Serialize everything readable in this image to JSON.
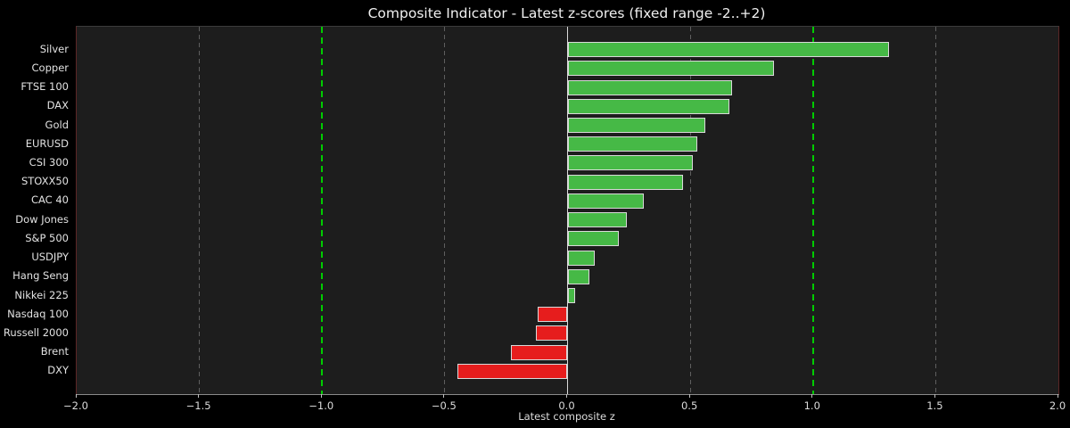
{
  "chart_data": {
    "type": "bar",
    "orientation": "horizontal",
    "title": "Composite Indicator - Latest z-scores (fixed range -2..+2)",
    "xlabel": "Latest composite z",
    "xlim": [
      -2.0,
      2.0
    ],
    "xticks": [
      -2.0,
      -1.5,
      -1.0,
      -0.5,
      0.0,
      0.5,
      1.0,
      1.5,
      2.0
    ],
    "grid": true,
    "legend_position": "none",
    "categories": [
      "Silver",
      "Copper",
      "FTSE 100",
      "DAX",
      "Gold",
      "EURUSD",
      "CSI 300",
      "STOXX50",
      "CAC 40",
      "Dow Jones",
      "S&P 500",
      "USDJPY",
      "Hang Seng",
      "Nikkei 225",
      "Nasdaq 100",
      "Russell 2000",
      "Brent",
      "DXY"
    ],
    "values": [
      1.31,
      0.84,
      0.67,
      0.66,
      0.56,
      0.53,
      0.51,
      0.47,
      0.31,
      0.24,
      0.21,
      0.11,
      0.09,
      0.03,
      -0.12,
      -0.13,
      -0.23,
      -0.45
    ],
    "threshold_lines": [
      -1.0,
      1.0
    ],
    "colors": {
      "figure_background": "#000000",
      "plot_background": "#1d1d1d",
      "positive_bar": "#46b946",
      "negative_bar": "#e61d1d",
      "bar_edge": "#d9d9d9",
      "zero_line": "#d9d9d9",
      "threshold_line": "#00cc00",
      "gridline": "#5f5f5f",
      "text": "#e2e2e2"
    }
  }
}
